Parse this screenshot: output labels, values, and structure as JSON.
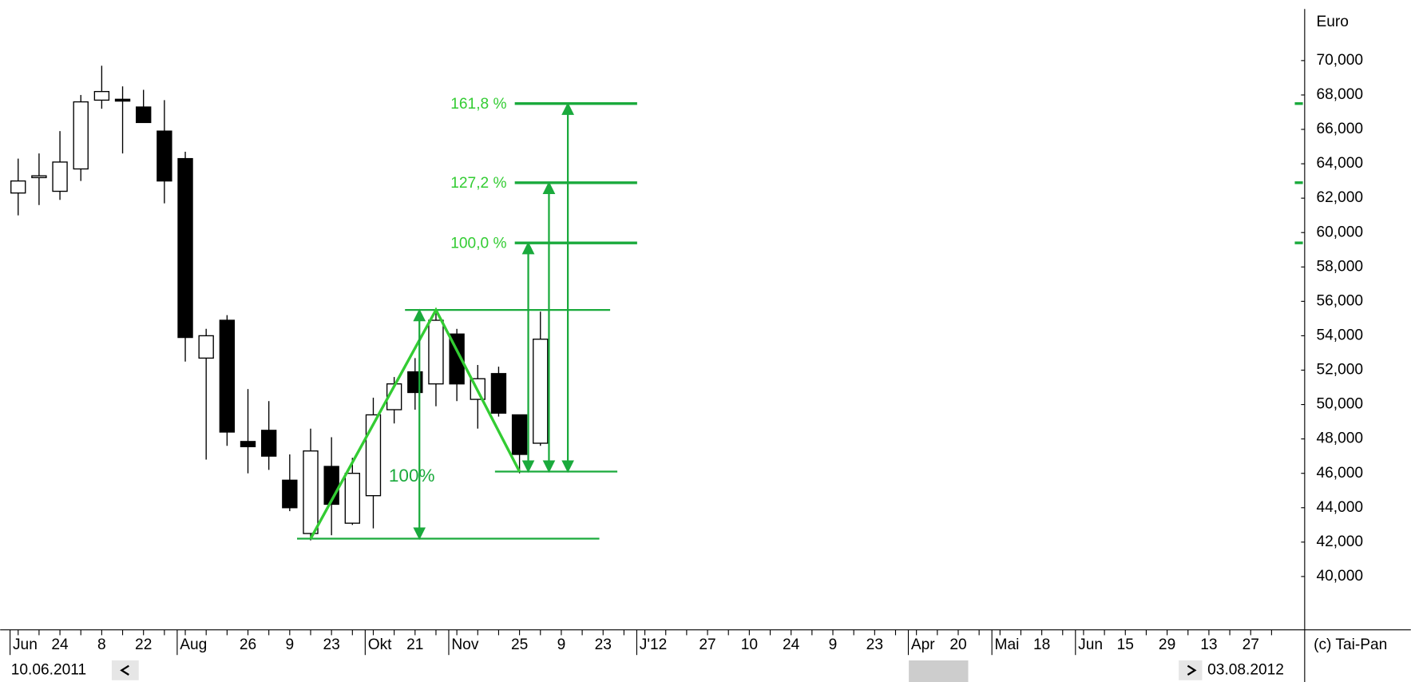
{
  "chart_data": {
    "type": "candlestick",
    "y_axis_label": "Euro",
    "copyright": "(c) Tai-Pan",
    "start_date": "10.06.2011",
    "end_date": "03.08.2012",
    "categories": [
      "Jun",
      null,
      "24",
      null,
      "8",
      null,
      "22",
      null,
      "Aug",
      null,
      null,
      "26",
      null,
      "9",
      null,
      "23",
      null,
      "Okt",
      null,
      "21",
      null,
      "Nov",
      null,
      null,
      "25",
      null,
      "9",
      null,
      "23",
      null,
      "J'12",
      null,
      null,
      "27",
      null,
      "10",
      null,
      "24",
      null,
      "9",
      null,
      "23",
      null,
      "Apr",
      null,
      "20",
      null,
      "Mai",
      null,
      "18",
      null,
      "Jun",
      null,
      "15",
      null,
      "29",
      null,
      "13",
      null,
      "27",
      null
    ],
    "open": [
      62.3,
      63.2,
      62.4,
      63.7,
      67.7,
      67.75,
      67.3,
      65.9,
      64.3,
      52.7,
      54.9,
      47.85,
      48.5,
      45.6,
      42.5,
      46.4,
      43.1,
      44.7,
      49.7,
      51.9,
      51.2,
      54.1,
      50.3,
      51.8,
      49.4,
      47.75,
      null,
      null,
      null,
      null,
      null,
      null,
      null,
      null,
      null,
      null,
      null,
      null,
      null,
      null,
      null,
      null,
      null,
      null,
      null,
      null,
      null,
      null,
      null,
      null,
      null,
      null,
      null,
      null,
      null,
      null,
      null,
      null,
      null,
      null,
      null
    ],
    "high": [
      64.3,
      64.6,
      65.9,
      68.0,
      69.7,
      68.5,
      68.3,
      67.7,
      64.7,
      54.4,
      55.2,
      50.9,
      50.2,
      47.1,
      48.6,
      48.1,
      46.9,
      50.4,
      51.6,
      52.7,
      55.3,
      54.4,
      52.3,
      52.2,
      49.4,
      55.4,
      null,
      null,
      null,
      null,
      null,
      null,
      null,
      null,
      null,
      null,
      null,
      null,
      null,
      null,
      null,
      null,
      null,
      null,
      null,
      null,
      null,
      null,
      null,
      null,
      null,
      null,
      null,
      null,
      null,
      null,
      null,
      null,
      null,
      null,
      null
    ],
    "low": [
      61.0,
      61.6,
      61.9,
      63.0,
      67.2,
      64.6,
      66.4,
      61.7,
      52.5,
      46.8,
      47.6,
      46.0,
      46.2,
      43.8,
      42.1,
      42.4,
      43.0,
      42.8,
      48.9,
      49.7,
      49.9,
      50.2,
      48.6,
      49.3,
      46.0,
      47.6,
      null,
      null,
      null,
      null,
      null,
      null,
      null,
      null,
      null,
      null,
      null,
      null,
      null,
      null,
      null,
      null,
      null,
      null,
      null,
      null,
      null,
      null,
      null,
      null,
      null,
      null,
      null,
      null,
      null,
      null,
      null,
      null,
      null,
      null,
      null
    ],
    "close": [
      63.0,
      63.3,
      64.1,
      67.6,
      68.2,
      67.7,
      66.4,
      63.0,
      53.9,
      54.0,
      48.4,
      47.55,
      47.0,
      44.0,
      47.3,
      44.2,
      46.0,
      49.4,
      51.2,
      50.7,
      54.9,
      51.2,
      51.5,
      49.5,
      47.1,
      53.8,
      null,
      null,
      null,
      null,
      null,
      null,
      null,
      null,
      null,
      null,
      null,
      null,
      null,
      null,
      null,
      null,
      null,
      null,
      null,
      null,
      null,
      null,
      null,
      null,
      null,
      null,
      null,
      null,
      null,
      null,
      null,
      null,
      null,
      null,
      null
    ],
    "ylim": [
      36.9,
      73
    ],
    "yticks": [
      {
        "value": 40,
        "label": "40,000"
      },
      {
        "value": 42,
        "label": "42,000"
      },
      {
        "value": 44,
        "label": "44,000"
      },
      {
        "value": 46,
        "label": "46,000"
      },
      {
        "value": 48,
        "label": "48,000"
      },
      {
        "value": 50,
        "label": "50,000"
      },
      {
        "value": 52,
        "label": "52,000"
      },
      {
        "value": 54,
        "label": "54,000"
      },
      {
        "value": 56,
        "label": "56,000"
      },
      {
        "value": 58,
        "label": "58,000"
      },
      {
        "value": 60,
        "label": "60,000"
      },
      {
        "value": 62,
        "label": "62,000"
      },
      {
        "value": 64,
        "label": "64,000"
      },
      {
        "value": 66,
        "label": "66,000"
      },
      {
        "value": 68,
        "label": "68,000"
      },
      {
        "value": 70,
        "label": "70,000"
      }
    ],
    "fibonacci": {
      "color": "#1aaa3c",
      "label_color": "#33cc33",
      "swing_low": 42.2,
      "swing_high": 55.5,
      "retrace_low": 46.1,
      "range_label": "100%",
      "levels": [
        {
          "label": "100,0 %",
          "value": 59.4
        },
        {
          "label": "127,2 %",
          "value": 62.9
        },
        {
          "label": "161,8 %",
          "value": 67.5
        }
      ]
    }
  }
}
